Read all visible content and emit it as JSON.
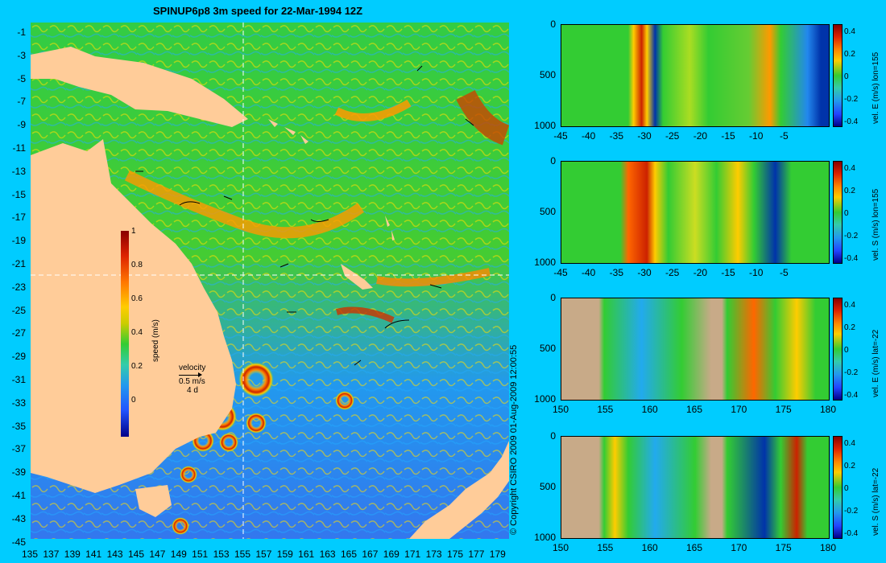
{
  "title": "SPINUP6p8 3m speed for 22-Mar-1994 12Z",
  "map": {
    "lat_ticks": [
      "-1",
      "-3",
      "-5",
      "-7",
      "-9",
      "-11",
      "-13",
      "-15",
      "-17",
      "-19",
      "-21",
      "-23",
      "-25",
      "-27",
      "-29",
      "-31",
      "-33",
      "-35",
      "-37",
      "-39",
      "-41",
      "-43",
      "-45"
    ],
    "lon_ticks": [
      "135",
      "137",
      "139",
      "141",
      "143",
      "145",
      "147",
      "149",
      "151",
      "153",
      "155",
      "157",
      "159",
      "161",
      "163",
      "165",
      "167",
      "169",
      "171",
      "173",
      "175",
      "177",
      "179"
    ],
    "colorbar": {
      "title": "speed (m/s)",
      "ticks": [
        "1",
        "0.8",
        "0.6",
        "0.4",
        "0.2",
        "0"
      ]
    },
    "velocity_legend": {
      "label": "velocity",
      "speed": "0.5 m/s",
      "duration": "4 d"
    },
    "crosshair": {
      "lon": 155,
      "lat": -22
    }
  },
  "copyright": "© Copyright CSIRO 2009   01-Aug-2009 12:00:55",
  "sections": [
    {
      "title": "vel. E (m/s) lon=155",
      "y_ticks": [
        "0",
        "500",
        "1000"
      ],
      "x_ticks": [
        "-45",
        "-40",
        "-35",
        "-30",
        "-25",
        "-20",
        "-15",
        "-10",
        "-5"
      ],
      "cbar_ticks": [
        "0.4",
        "0.2",
        "0",
        "-0.2",
        "-0.4"
      ]
    },
    {
      "title": "vel. S (m/s) lon=155",
      "y_ticks": [
        "0",
        "500",
        "1000"
      ],
      "x_ticks": [
        "-45",
        "-40",
        "-35",
        "-30",
        "-25",
        "-20",
        "-15",
        "-10",
        "-5"
      ],
      "cbar_ticks": [
        "0.4",
        "0.2",
        "0",
        "-0.2",
        "-0.4"
      ]
    },
    {
      "title": "vel. E (m/s) lat=-22",
      "y_ticks": [
        "0",
        "500",
        "1000"
      ],
      "x_ticks": [
        "150",
        "155",
        "160",
        "165",
        "170",
        "175",
        "180"
      ],
      "cbar_ticks": [
        "0.4",
        "0.2",
        "0",
        "-0.2",
        "-0.4"
      ]
    },
    {
      "title": "vel. S (m/s) lat=-22",
      "y_ticks": [
        "0",
        "500",
        "1000"
      ],
      "x_ticks": [
        "150",
        "155",
        "160",
        "165",
        "170",
        "175",
        "180"
      ],
      "cbar_ticks": [
        "0.4",
        "0.2",
        "0",
        "-0.2",
        "-0.4"
      ]
    }
  ],
  "colors": {
    "background": "#00ccff",
    "land": "#ffcc99",
    "section_land": "#c8aa88"
  }
}
